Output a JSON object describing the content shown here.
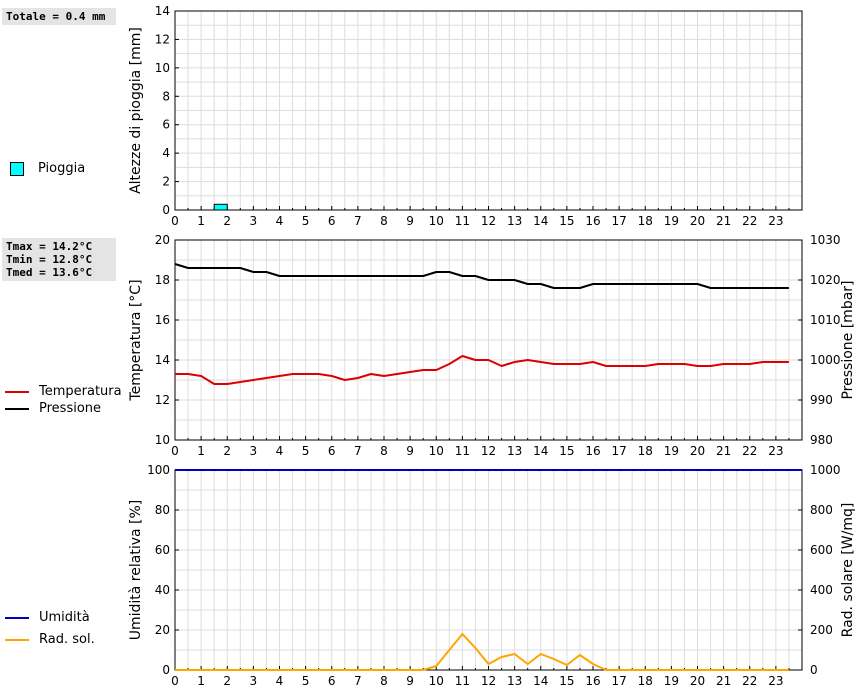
{
  "stats": {
    "totale": "Totale = 0.4 mm",
    "tmax": "Tmax = 14.2°C",
    "tmin": "Tmin = 12.8°C",
    "tmed": "Tmed = 13.6°C"
  },
  "legend": {
    "pioggia": {
      "label": "Pioggia",
      "color": "#00ffff"
    },
    "temperatura": {
      "label": "Temperatura",
      "color": "#dd0000"
    },
    "pressione": {
      "label": "Pressione",
      "color": "#000000"
    },
    "umidita": {
      "label": "Umidità",
      "color": "#0000bb"
    },
    "radsol": {
      "label": "Rad. sol.",
      "color": "#ffa500"
    }
  },
  "chart_data": [
    {
      "type": "bar",
      "ylabel": "Altezze di pioggia [mm]",
      "ylim": [
        0,
        14
      ],
      "yticks": [
        0,
        2,
        4,
        6,
        8,
        10,
        12,
        14
      ],
      "xlim": [
        0,
        24
      ],
      "xticks": [
        0,
        1,
        2,
        3,
        4,
        5,
        6,
        7,
        8,
        9,
        10,
        11,
        12,
        13,
        14,
        15,
        16,
        17,
        18,
        19,
        20,
        21,
        22,
        23
      ],
      "grid": true,
      "series": [
        {
          "name": "Pioggia",
          "color": "#00ffff",
          "bars": [
            {
              "x": 1.75,
              "value": 0.4
            }
          ]
        }
      ]
    },
    {
      "type": "line",
      "ylabel": "Temperatura [°C]",
      "ylim": [
        10,
        20
      ],
      "yticks": [
        10,
        12,
        14,
        16,
        18,
        20
      ],
      "y2label": "Pressione [mbar]",
      "y2lim": [
        980,
        1030
      ],
      "y2ticks": [
        980,
        990,
        1000,
        1010,
        1020,
        1030
      ],
      "xlim": [
        0,
        24
      ],
      "xticks": [
        0,
        1,
        2,
        3,
        4,
        5,
        6,
        7,
        8,
        9,
        10,
        11,
        12,
        13,
        14,
        15,
        16,
        17,
        18,
        19,
        20,
        21,
        22,
        23
      ],
      "grid": true,
      "series": [
        {
          "name": "Temperatura",
          "axis": "left",
          "color": "#dd0000",
          "x": [
            0,
            0.5,
            1,
            1.5,
            2,
            2.5,
            3,
            3.5,
            4,
            4.5,
            5,
            5.5,
            6,
            6.5,
            7,
            7.5,
            8,
            8.5,
            9,
            9.5,
            10,
            10.5,
            11,
            11.5,
            12,
            12.5,
            13,
            13.5,
            14,
            14.5,
            15,
            15.5,
            16,
            16.5,
            17,
            17.5,
            18,
            18.5,
            19,
            19.5,
            20,
            20.5,
            21,
            21.5,
            22,
            22.5,
            23,
            23.5
          ],
          "y": [
            13.3,
            13.3,
            13.2,
            12.8,
            12.8,
            12.9,
            13.0,
            13.1,
            13.2,
            13.3,
            13.3,
            13.3,
            13.2,
            13.0,
            13.1,
            13.3,
            13.2,
            13.3,
            13.4,
            13.5,
            13.5,
            13.8,
            14.2,
            14.0,
            14.0,
            13.7,
            13.9,
            14.0,
            13.9,
            13.8,
            13.8,
            13.8,
            13.9,
            13.7,
            13.7,
            13.7,
            13.7,
            13.8,
            13.8,
            13.8,
            13.7,
            13.7,
            13.8,
            13.8,
            13.8,
            13.9,
            13.9,
            13.9
          ]
        },
        {
          "name": "Pressione",
          "axis": "right",
          "color": "#000000",
          "x": [
            0,
            0.5,
            1,
            1.5,
            2,
            2.5,
            3,
            3.5,
            4,
            4.5,
            5,
            5.5,
            6,
            6.5,
            7,
            7.5,
            8,
            8.5,
            9,
            9.5,
            10,
            10.5,
            11,
            11.5,
            12,
            12.5,
            13,
            13.5,
            14,
            14.5,
            15,
            15.5,
            16,
            16.5,
            17,
            17.5,
            18,
            18.5,
            19,
            19.5,
            20,
            20.5,
            21,
            21.5,
            22,
            22.5,
            23,
            23.5
          ],
          "y": [
            1024,
            1023,
            1023,
            1023,
            1023,
            1023,
            1022,
            1022,
            1021,
            1021,
            1021,
            1021,
            1021,
            1021,
            1021,
            1021,
            1021,
            1021,
            1021,
            1021,
            1022,
            1022,
            1021,
            1021,
            1020,
            1020,
            1020,
            1019,
            1019,
            1018,
            1018,
            1018,
            1019,
            1019,
            1019,
            1019,
            1019,
            1019,
            1019,
            1019,
            1019,
            1018,
            1018,
            1018,
            1018,
            1018,
            1018,
            1018
          ]
        }
      ]
    },
    {
      "type": "line",
      "ylabel": "Umidità relativa [%]",
      "ylim": [
        0,
        100
      ],
      "yticks": [
        0,
        20,
        40,
        60,
        80,
        100
      ],
      "y2label": "Rad. solare [W/mq]",
      "y2lim": [
        0,
        1000
      ],
      "y2ticks": [
        0,
        200,
        400,
        600,
        800,
        1000
      ],
      "xlim": [
        0,
        24
      ],
      "xticks": [
        0,
        1,
        2,
        3,
        4,
        5,
        6,
        7,
        8,
        9,
        10,
        11,
        12,
        13,
        14,
        15,
        16,
        17,
        18,
        19,
        20,
        21,
        22,
        23
      ],
      "grid": true,
      "series": [
        {
          "name": "Umidità",
          "axis": "left",
          "color": "#0000bb",
          "x": [
            0,
            24
          ],
          "y": [
            100,
            100
          ]
        },
        {
          "name": "Rad. sol.",
          "axis": "right",
          "color": "#ffa500",
          "x": [
            0,
            9.5,
            10,
            10.5,
            11,
            11.5,
            12,
            12.5,
            13,
            13.5,
            14,
            14.5,
            15,
            15.5,
            16,
            16.5,
            17,
            20,
            23.5
          ],
          "y": [
            0,
            0,
            20,
            100,
            180,
            110,
            30,
            65,
            80,
            30,
            80,
            55,
            25,
            75,
            30,
            0,
            0,
            0,
            0
          ]
        }
      ]
    }
  ]
}
